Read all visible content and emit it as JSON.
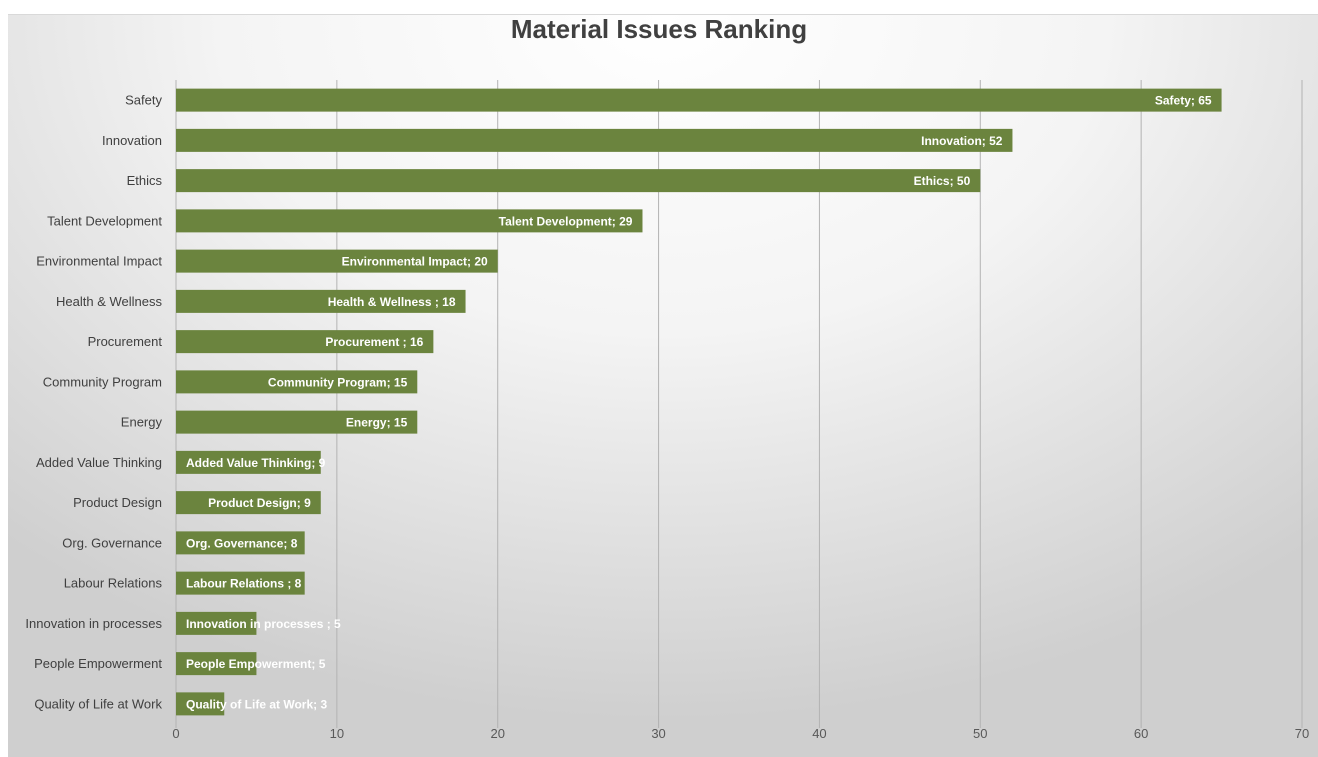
{
  "colors": {
    "bar": "#6b843e",
    "label_text": "#ffffff",
    "axis_text": "#595959"
  },
  "chart_data": {
    "type": "bar",
    "orientation": "horizontal",
    "title": "Material Issues Ranking",
    "xlabel": "",
    "ylabel": "",
    "xlim": [
      0,
      70
    ],
    "ticks": [
      0,
      10,
      20,
      30,
      40,
      50,
      60,
      70
    ],
    "grid": true,
    "legend": "none",
    "categories": [
      "Safety",
      "Innovation",
      "Ethics",
      "Talent Development",
      "Environmental Impact",
      "Health & Wellness",
      "Procurement",
      "Community Program",
      "Energy",
      "Added Value Thinking",
      "Product Design",
      "Org. Governance",
      "Labour Relations",
      "Innovation in processes",
      "People Empowerment",
      "Quality of Life at Work"
    ],
    "values": [
      65,
      52,
      50,
      29,
      20,
      18,
      16,
      15,
      15,
      9,
      9,
      8,
      8,
      5,
      5,
      3
    ],
    "data_labels": [
      "Safety; 65",
      "Innovation; 52",
      "Ethics; 50",
      "Talent Development; 29",
      "Environmental Impact; 20",
      "Health & Wellness ; 18",
      "Procurement ; 16",
      "Community Program; 15",
      "Energy; 15",
      "Added Value Thinking; 9",
      "Product Design; 9",
      "Org. Governance; 8",
      "Labour Relations ; 8",
      "Innovation in processes ; 5",
      "People Empowerment; 5",
      "Quality of Life at Work; 3"
    ]
  }
}
